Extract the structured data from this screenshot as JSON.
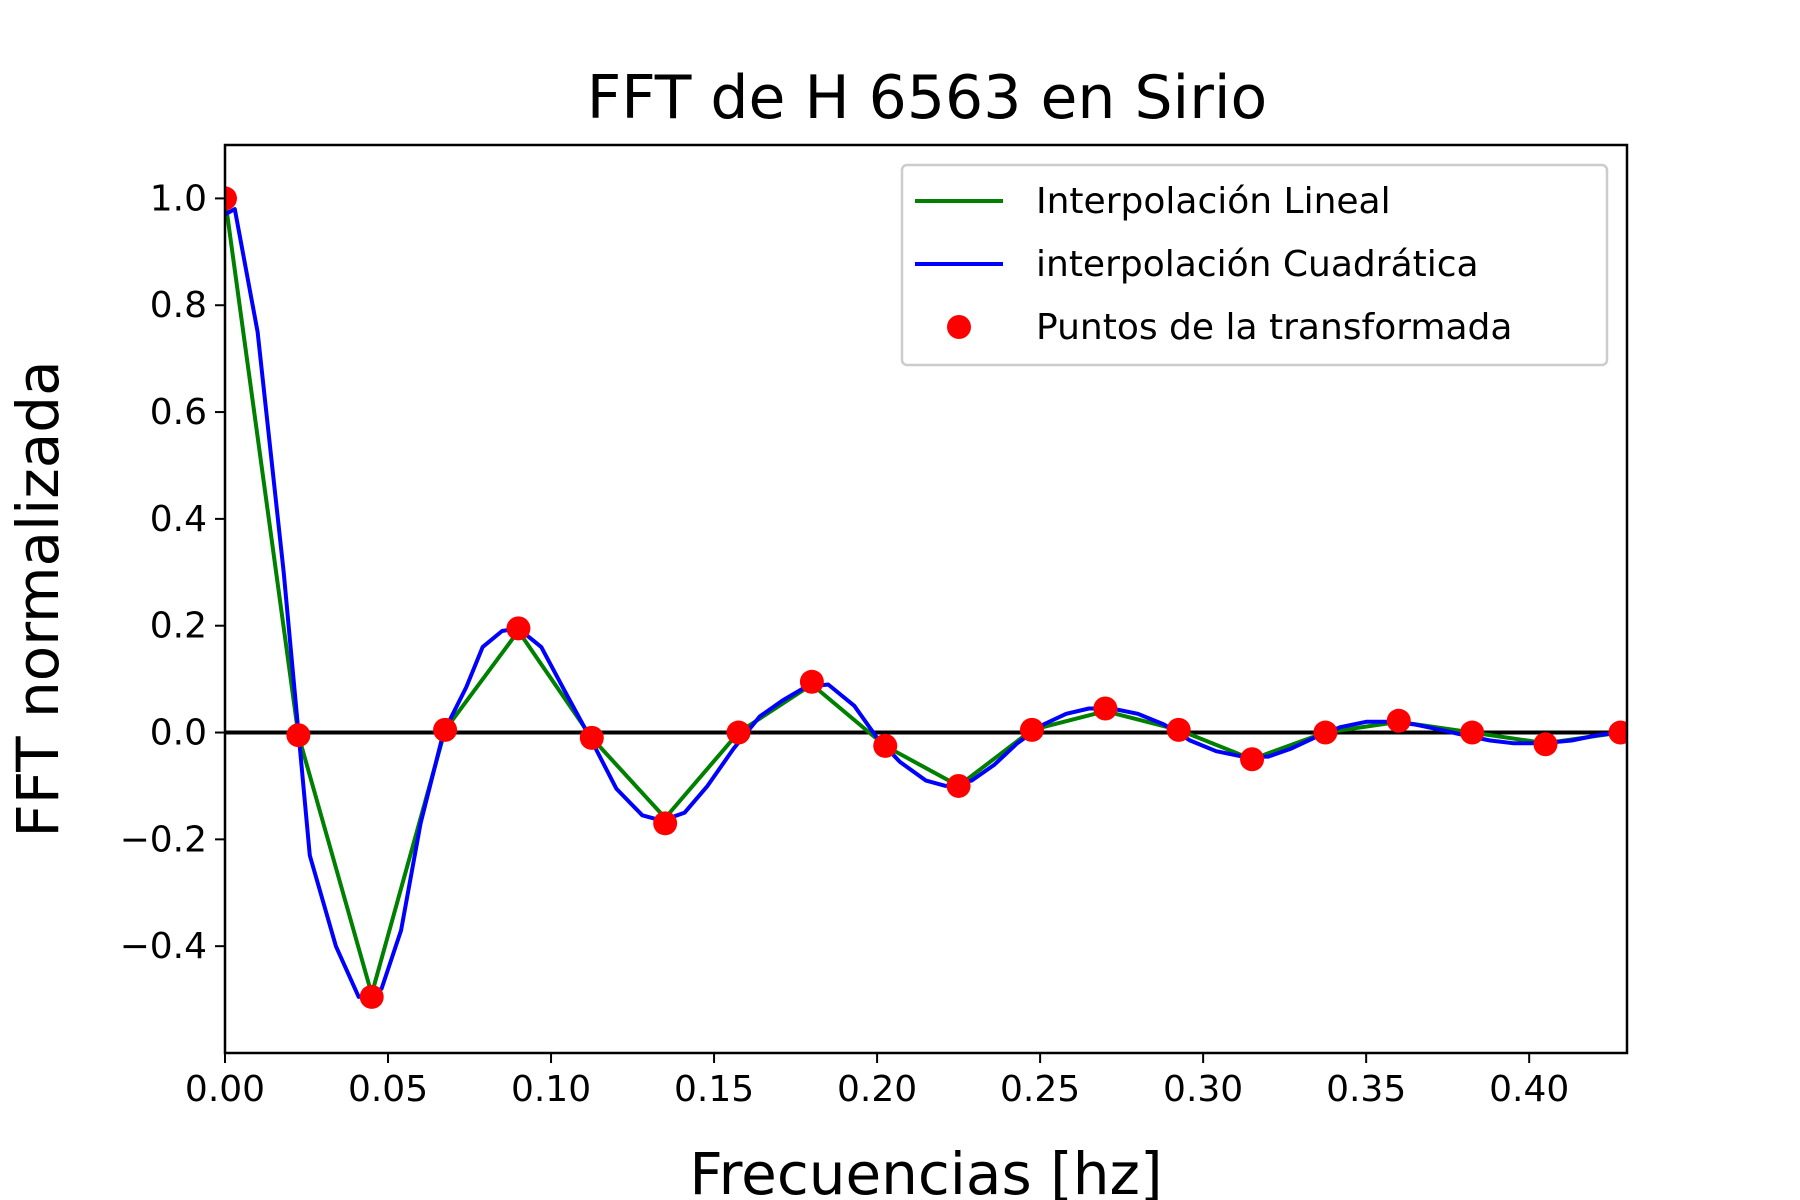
{
  "chart_data": {
    "type": "line",
    "title": "FFT de H 6563 en Sirio",
    "xlabel": "Frecuencias [hz]",
    "ylabel": "FFT normalizada",
    "xlim": [
      0.0,
      0.43
    ],
    "ylim": [
      -0.6,
      1.1
    ],
    "xticks": [
      0.0,
      0.05,
      0.1,
      0.15,
      0.2,
      0.25,
      0.3,
      0.35,
      0.4
    ],
    "xtick_labels": [
      "0.00",
      "0.05",
      "0.10",
      "0.15",
      "0.20",
      "0.25",
      "0.30",
      "0.35",
      "0.40"
    ],
    "yticks": [
      -0.4,
      -0.2,
      0.0,
      0.2,
      0.4,
      0.6,
      0.8,
      1.0
    ],
    "ytick_labels": [
      "−0.4",
      "−0.2",
      "0.0",
      "0.2",
      "0.4",
      "0.6",
      "0.8",
      "1.0"
    ],
    "grid": false,
    "legend_position": "top-right",
    "reference_line": {
      "y": 0.0,
      "color": "#000000"
    },
    "series": [
      {
        "name": "Interpolación Lineal",
        "kind": "line",
        "color": "#008000",
        "x": [
          0.0,
          0.0225,
          0.045,
          0.0675,
          0.09,
          0.1125,
          0.135,
          0.1575,
          0.18,
          0.2025,
          0.225,
          0.2475,
          0.27,
          0.2925,
          0.315,
          0.3375,
          0.36,
          0.3825,
          0.405,
          0.428
        ],
        "y": [
          1.0,
          -0.005,
          -0.49,
          0.005,
          0.19,
          -0.01,
          -0.16,
          0.0,
          0.09,
          -0.025,
          -0.1,
          0.005,
          0.04,
          0.005,
          -0.05,
          0.0,
          0.02,
          0.0,
          -0.02,
          0.0
        ]
      },
      {
        "name": "interpolación Cuadrática",
        "kind": "line",
        "color": "#0000ff",
        "x": [
          0.0,
          0.003,
          0.01,
          0.018,
          0.026,
          0.034,
          0.041,
          0.048,
          0.054,
          0.06,
          0.067,
          0.074,
          0.079,
          0.085,
          0.09,
          0.097,
          0.104,
          0.112,
          0.12,
          0.128,
          0.134,
          0.141,
          0.148,
          0.156,
          0.164,
          0.171,
          0.178,
          0.185,
          0.193,
          0.2,
          0.207,
          0.215,
          0.221,
          0.229,
          0.236,
          0.243,
          0.251,
          0.258,
          0.265,
          0.272,
          0.28,
          0.288,
          0.296,
          0.304,
          0.312,
          0.32,
          0.327,
          0.334,
          0.342,
          0.35,
          0.358,
          0.365,
          0.373,
          0.38,
          0.388,
          0.395,
          0.404,
          0.413,
          0.421,
          0.428
        ],
        "y": [
          0.97,
          0.98,
          0.75,
          0.3,
          -0.23,
          -0.4,
          -0.495,
          -0.48,
          -0.37,
          -0.17,
          0.0,
          0.085,
          0.16,
          0.19,
          0.195,
          0.16,
          0.08,
          -0.01,
          -0.105,
          -0.155,
          -0.165,
          -0.15,
          -0.1,
          -0.03,
          0.03,
          0.06,
          0.085,
          0.09,
          0.05,
          -0.01,
          -0.055,
          -0.09,
          -0.1,
          -0.09,
          -0.06,
          -0.02,
          0.015,
          0.035,
          0.045,
          0.045,
          0.035,
          0.015,
          -0.015,
          -0.035,
          -0.045,
          -0.045,
          -0.03,
          -0.01,
          0.01,
          0.02,
          0.02,
          0.015,
          0.005,
          -0.005,
          -0.015,
          -0.02,
          -0.02,
          -0.015,
          -0.005,
          0.0
        ]
      },
      {
        "name": "Puntos de la transformada",
        "kind": "scatter",
        "color": "#ff0000",
        "x": [
          0.0,
          0.0225,
          0.045,
          0.0675,
          0.09,
          0.1125,
          0.135,
          0.1575,
          0.18,
          0.2025,
          0.225,
          0.2475,
          0.27,
          0.2925,
          0.315,
          0.3375,
          0.36,
          0.3825,
          0.405,
          0.428
        ],
        "y": [
          1.0,
          -0.005,
          -0.495,
          0.005,
          0.195,
          -0.01,
          -0.17,
          0.0,
          0.095,
          -0.025,
          -0.1,
          0.005,
          0.045,
          0.005,
          -0.05,
          0.0,
          0.022,
          0.0,
          -0.022,
          0.0
        ]
      }
    ]
  }
}
